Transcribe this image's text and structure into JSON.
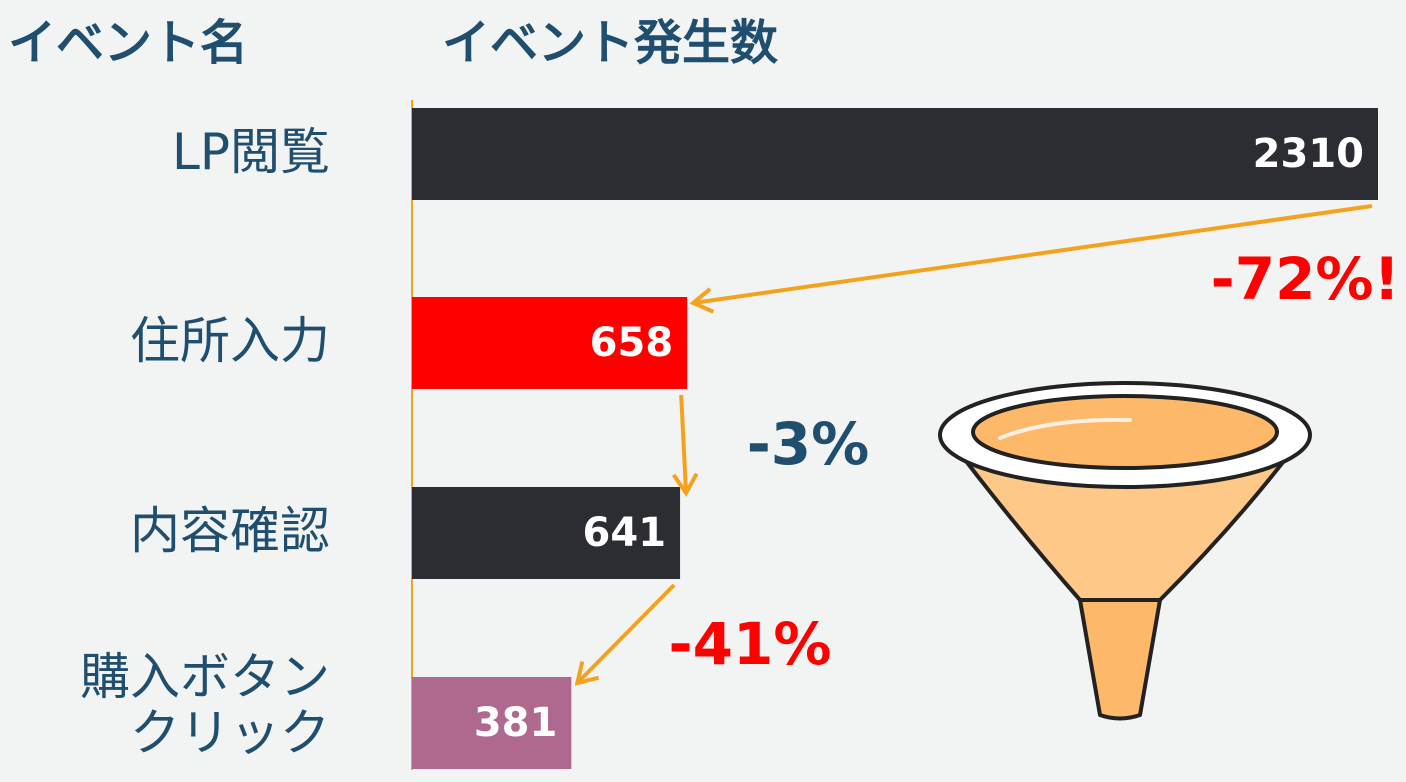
{
  "chart_data": {
    "type": "bar",
    "orientation": "horizontal",
    "category_axis_label": "イベント名",
    "value_axis_label": "イベント発生数",
    "categories": [
      "LP閲覧",
      "住所入力",
      "内容確認",
      "購入ボタンクリック"
    ],
    "values": [
      2310,
      658,
      641,
      381
    ],
    "colors": [
      "#2b2d33",
      "#ff0000",
      "#2b2d33",
      "#b0698e"
    ],
    "xlim": [
      0,
      2310
    ],
    "annotations": [
      {
        "text": "-72%!",
        "color": "#ff0000"
      },
      {
        "text": "-3%",
        "color": "#1f4e6e"
      },
      {
        "text": "-41%",
        "color": "#ff0000"
      }
    ]
  }
}
